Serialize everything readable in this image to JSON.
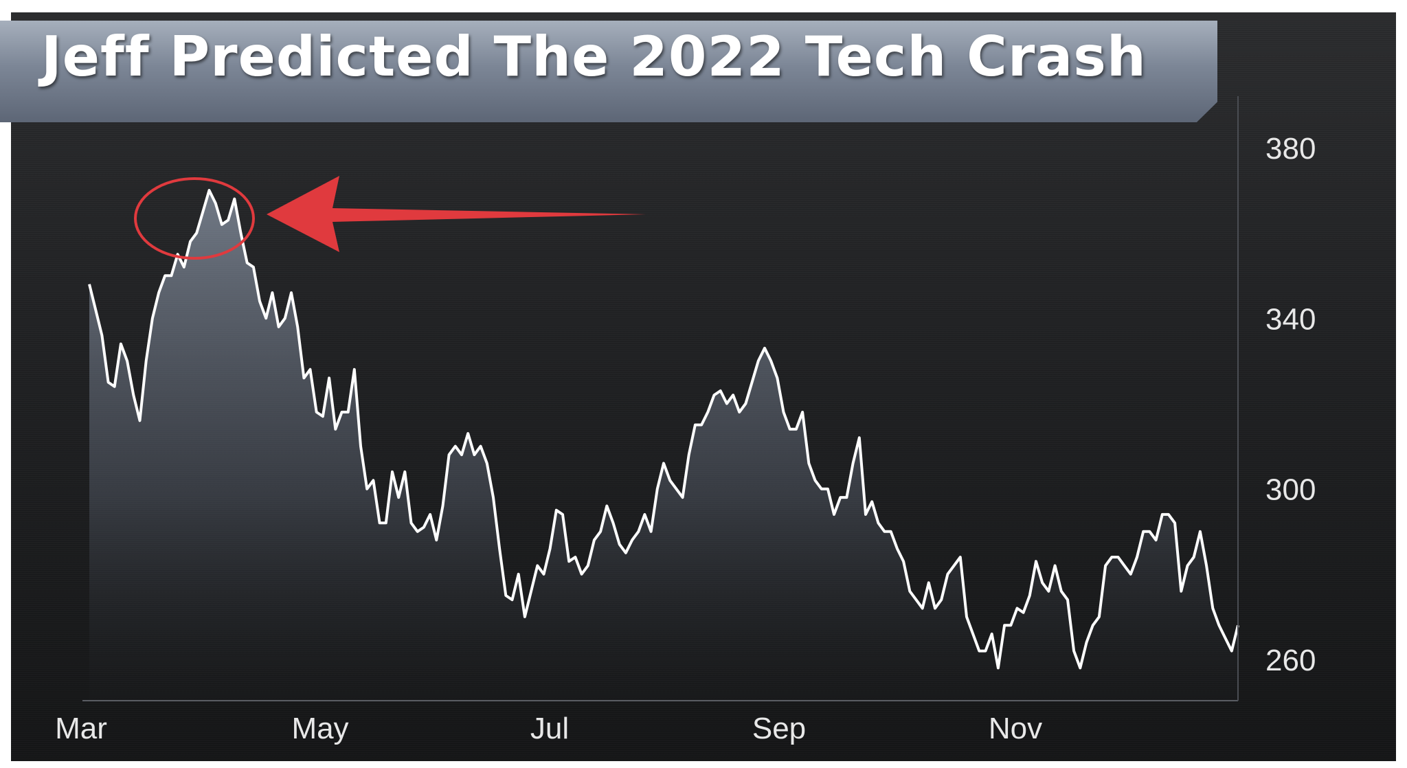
{
  "chart_data": {
    "type": "area",
    "title": "Jeff Predicted The 2022 Tech Crash",
    "x_ticks": [
      "Mar",
      "May",
      "Jul",
      "Sep",
      "Nov"
    ],
    "y_ticks": [
      380,
      340,
      300,
      260
    ],
    "ylim": [
      250,
      385
    ],
    "grid": false,
    "y_axis_side": "right",
    "colors": {
      "line": "#ffffff",
      "annotation": "#e03a3e",
      "banner": "#7c8696"
    },
    "series": [
      {
        "values": [
          348,
          342,
          336,
          325,
          324,
          334,
          330,
          322,
          316,
          330,
          340,
          346,
          350,
          350,
          355,
          352,
          358,
          360,
          365,
          370,
          367,
          362,
          363,
          368,
          360,
          353,
          352,
          344,
          340,
          346,
          338,
          340,
          346,
          338,
          326,
          328,
          318,
          317,
          326,
          314,
          318,
          318,
          328,
          310,
          300,
          302,
          292,
          292,
          304,
          298,
          304,
          292,
          290,
          291,
          294,
          288,
          296,
          308,
          310,
          308,
          313,
          308,
          310,
          306,
          298,
          286,
          275,
          274,
          280,
          270,
          276,
          282,
          280,
          286,
          295,
          294,
          283,
          284,
          280,
          282,
          288,
          290,
          296,
          292,
          287,
          285,
          288,
          290,
          294,
          290,
          300,
          306,
          302,
          300,
          298,
          308,
          315,
          315,
          318,
          322,
          323,
          320,
          322,
          318,
          320,
          325,
          330,
          333,
          330,
          326,
          318,
          314,
          314,
          318,
          306,
          302,
          300,
          300,
          294,
          298,
          298,
          306,
          312,
          294,
          297,
          292,
          290,
          290,
          286,
          283,
          276,
          274,
          272,
          278,
          272,
          274,
          280,
          282,
          284,
          270,
          266,
          262,
          262,
          266,
          258,
          268,
          268,
          272,
          271,
          275,
          283,
          278,
          276,
          282,
          276,
          274,
          262,
          258,
          264,
          268,
          270,
          282,
          284,
          284,
          282,
          280,
          284,
          290,
          290,
          288,
          294,
          294,
          292,
          276,
          282,
          284,
          290,
          282,
          272,
          268,
          265,
          262,
          268
        ],
        "values_note": "read off the axes, approximate"
      }
    ],
    "annotations": [
      "peak-circle",
      "arrow-pointing-to-peak"
    ]
  }
}
